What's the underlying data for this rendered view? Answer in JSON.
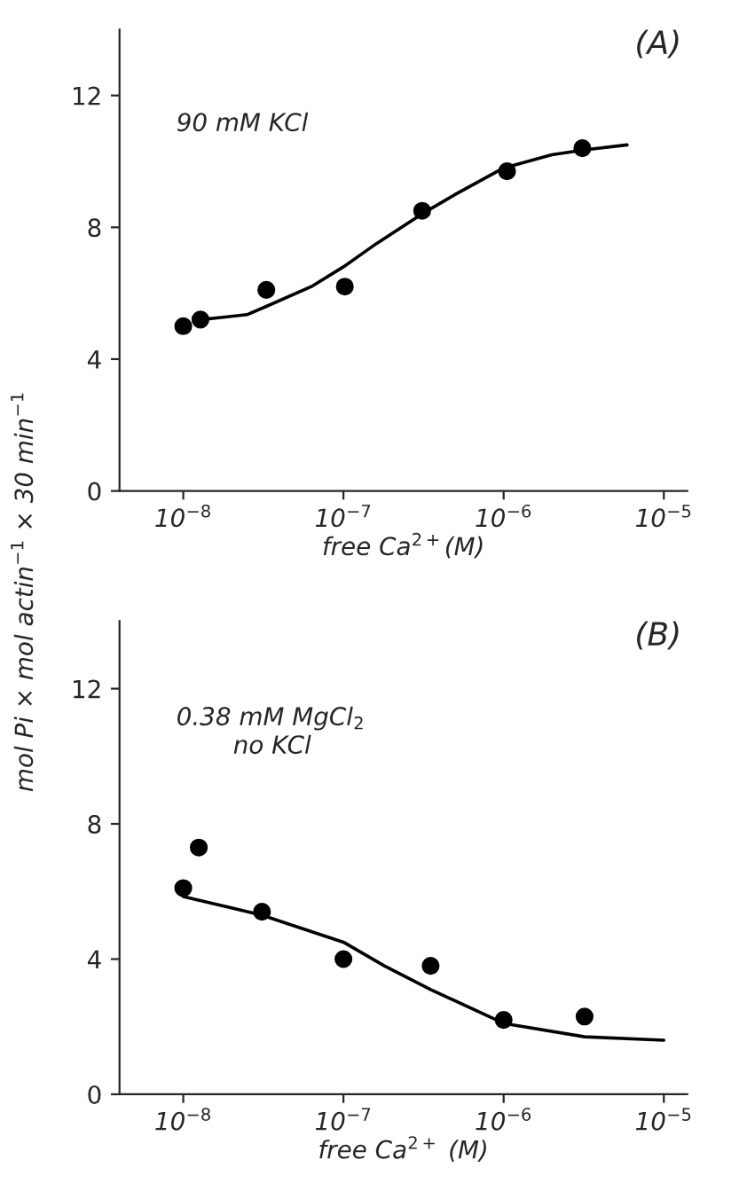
{
  "chart_data": [
    {
      "type": "scatter",
      "title": "(A)",
      "xlabel": "free Ca$^{2+}$(M)",
      "ylabel": "mol Pi × mol actin$^{−1}$ × 30 min$^{−1}$",
      "log": "x",
      "xlim": [
        4e-09,
        1.4e-05
      ],
      "ylim": [
        0,
        14
      ],
      "xticks": [
        {
          "value": 1e-08,
          "label": "10$^{−8}$"
        },
        {
          "value": 1e-07,
          "label": "10$^{−7}$"
        },
        {
          "value": 1e-06,
          "label": "10$^{−6}$"
        },
        {
          "value": 1e-05,
          "label": "10$^{−5}$"
        }
      ],
      "yticks": [
        0,
        4,
        8,
        12
      ],
      "grid": false,
      "legend": false,
      "annotations": [
        "90 mM KCl"
      ],
      "series": [
        {
          "marker": "circle",
          "color": "#000000",
          "x": [
            1e-08,
            1.28e-08,
            3.3e-08,
            1.02e-07,
            3.1e-07,
            1.05e-06,
            3.1e-06
          ],
          "values": [
            5.0,
            5.2,
            6.1,
            6.2,
            8.5,
            9.7,
            10.4
          ]
        },
        {
          "type": "line",
          "color": "#000000",
          "line_style": "solid",
          "x": [
            1.3e-08,
            2.5e-08,
            3.3e-08,
            6.3e-08,
            1e-07,
            1.6e-07,
            3.2e-07,
            5e-07,
            1e-06,
            2e-06,
            3.2e-06,
            5.9e-06
          ],
          "values": [
            5.2,
            5.35,
            5.6,
            6.2,
            6.8,
            7.5,
            8.45,
            9.0,
            9.8,
            10.2,
            10.35,
            10.5
          ]
        }
      ]
    },
    {
      "type": "scatter",
      "title": "(B)",
      "xlabel": "free Ca$^{2+}$ (M)",
      "log": "x",
      "xlim": [
        4e-09,
        1.4e-05
      ],
      "ylim": [
        0,
        14
      ],
      "xticks": [
        {
          "value": 1e-08,
          "label": "10$^{−8}$"
        },
        {
          "value": 1e-07,
          "label": "10$^{−7}$"
        },
        {
          "value": 1e-06,
          "label": "10$^{−6}$"
        },
        {
          "value": 1e-05,
          "label": "10$^{−5}$"
        }
      ],
      "yticks": [
        0,
        4,
        8,
        12
      ],
      "grid": false,
      "legend": false,
      "annotations": [
        "0.38 mM MgCl$_{2}$",
        "no KCl"
      ],
      "series": [
        {
          "marker": "circle",
          "color": "#000000",
          "x": [
            1e-08,
            1.25e-08,
            3.1e-08,
            1e-07,
            3.5e-07,
            1e-06,
            3.2e-06
          ],
          "values": [
            6.1,
            7.3,
            5.4,
            4.0,
            3.8,
            2.2,
            2.3
          ]
        },
        {
          "type": "line",
          "color": "#000000",
          "line_style": "solid",
          "x": [
            1e-08,
            3.1e-08,
            1e-07,
            1.8e-07,
            3.5e-07,
            1e-06,
            3.2e-06,
            1e-05
          ],
          "values": [
            5.85,
            5.3,
            4.5,
            3.8,
            3.1,
            2.1,
            1.7,
            1.6
          ]
        }
      ]
    }
  ]
}
